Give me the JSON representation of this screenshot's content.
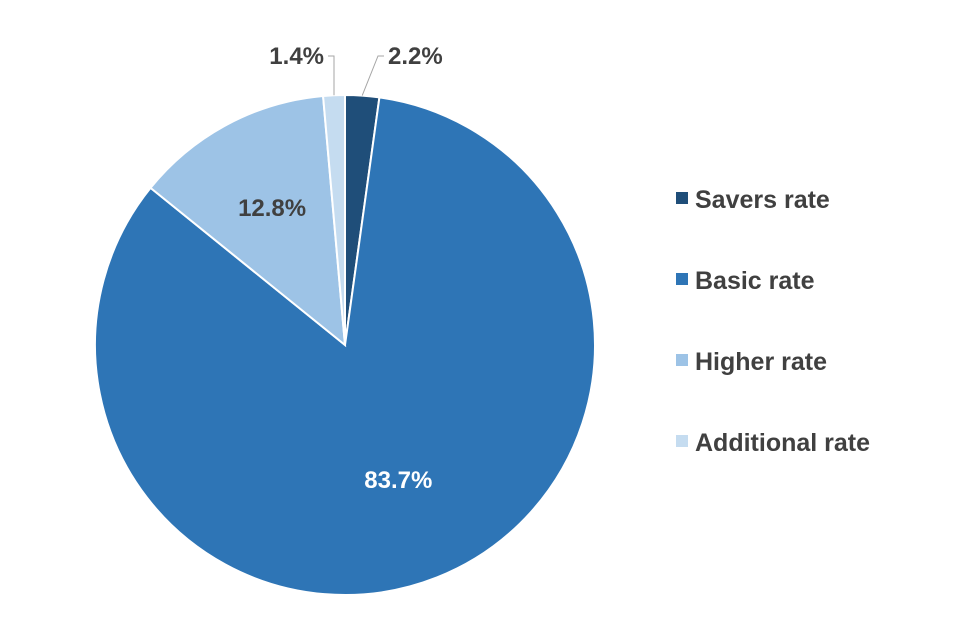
{
  "chart_data": {
    "type": "pie",
    "title": "",
    "slices": [
      {
        "name": "Savers rate",
        "value": 2.2,
        "label": "2.2%",
        "color": "#1F4E79"
      },
      {
        "name": "Basic rate",
        "value": 83.7,
        "label": "83.7%",
        "color": "#2E75B6"
      },
      {
        "name": "Higher rate",
        "value": 12.8,
        "label": "12.8%",
        "color": "#9DC3E6"
      },
      {
        "name": "Additional rate",
        "value": 1.4,
        "label": "1.4%",
        "color": "#C5DCF0"
      }
    ],
    "legend_position": "right",
    "start_angle_deg": 0,
    "direction": "clockwise"
  }
}
